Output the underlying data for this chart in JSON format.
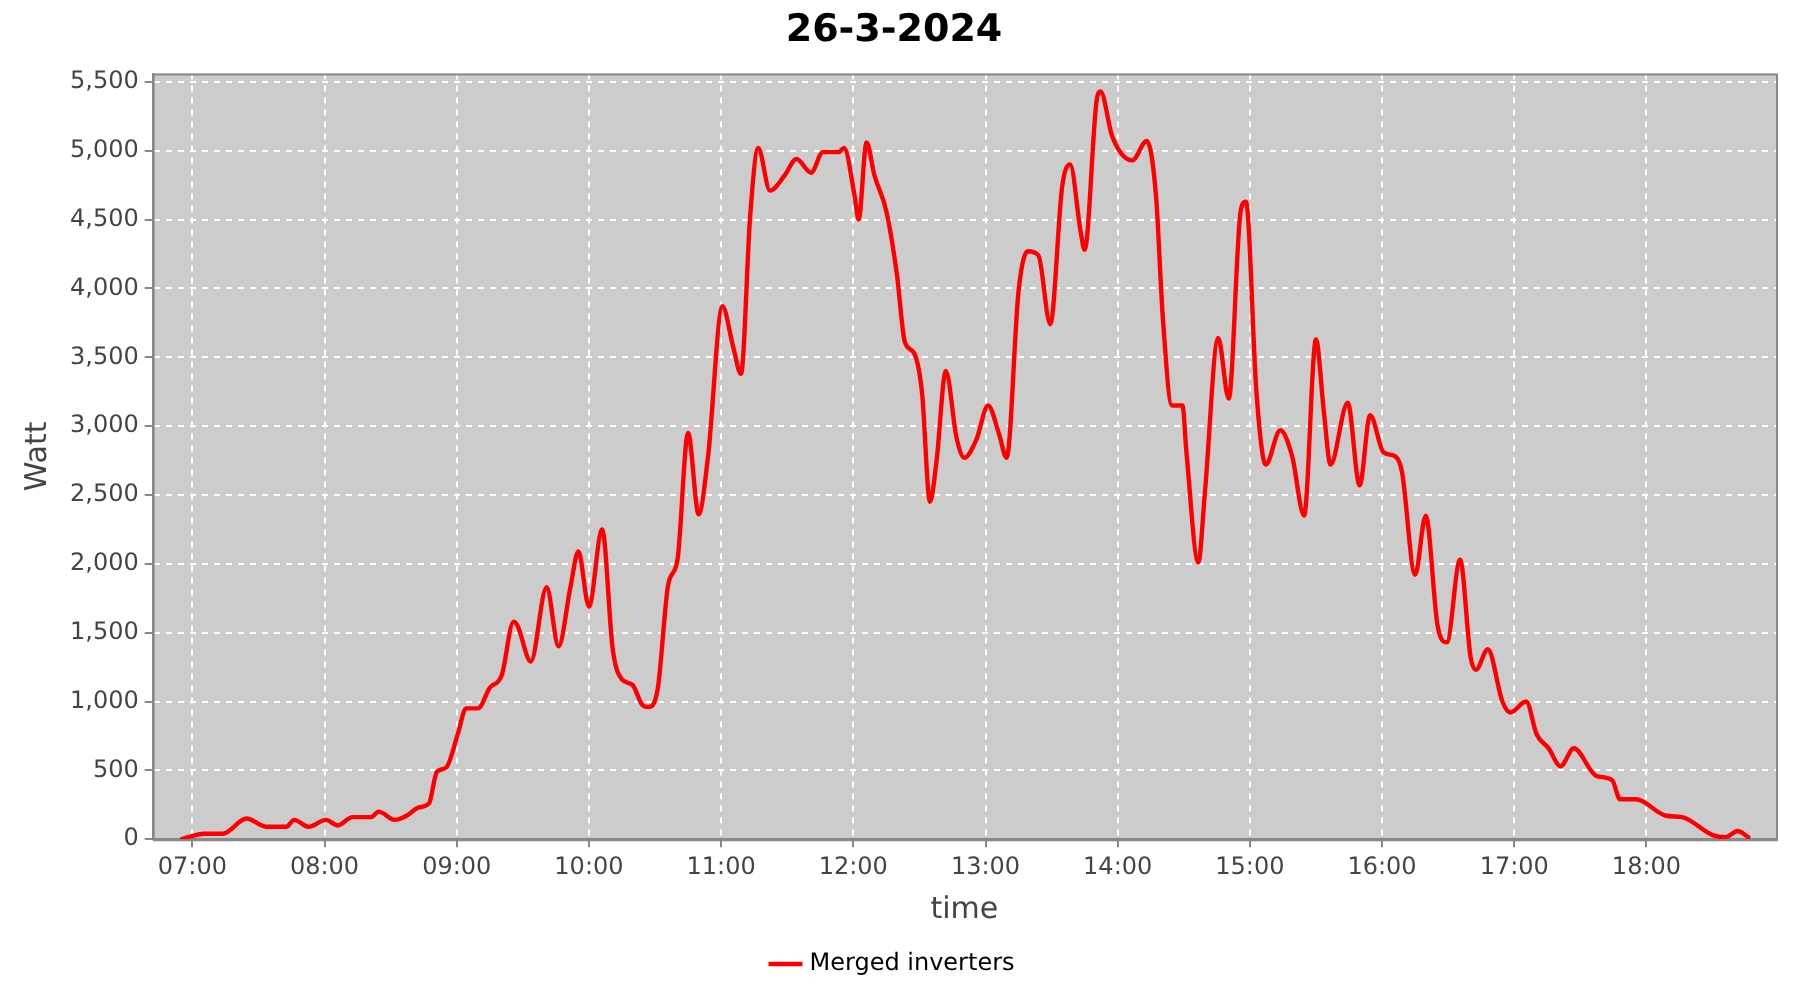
{
  "chart_data": {
    "type": "line",
    "title": "26-3-2024",
    "xlabel": "time",
    "ylabel": "Watt",
    "xlim": [
      6.7,
      18.98
    ],
    "xticks": [
      {
        "value": 7,
        "label": "07:00"
      },
      {
        "value": 8,
        "label": "08:00"
      },
      {
        "value": 9,
        "label": "09:00"
      },
      {
        "value": 10,
        "label": "10:00"
      },
      {
        "value": 11,
        "label": "11:00"
      },
      {
        "value": 12,
        "label": "12:00"
      },
      {
        "value": 13,
        "label": "13:00"
      },
      {
        "value": 14,
        "label": "14:00"
      },
      {
        "value": 15,
        "label": "15:00"
      },
      {
        "value": 16,
        "label": "16:00"
      },
      {
        "value": 17,
        "label": "17:00"
      },
      {
        "value": 18,
        "label": "18:00"
      }
    ],
    "ylim": [
      0,
      5560
    ],
    "yticks": [
      0,
      500,
      {
        "value": 1000,
        "label": "1,000"
      },
      {
        "value": 1500,
        "label": "1,500"
      },
      {
        "value": 2000,
        "label": "2,000"
      },
      {
        "value": 2500,
        "label": "2,500"
      },
      {
        "value": 3000,
        "label": "3,000"
      },
      {
        "value": 3500,
        "label": "3,500"
      },
      {
        "value": 4000,
        "label": "4,000"
      },
      {
        "value": 4500,
        "label": "4,500"
      },
      {
        "value": 5000,
        "label": "5,000"
      },
      {
        "value": 5500,
        "label": "5,500"
      }
    ],
    "grid": true,
    "legend": "bottom",
    "marker": "none",
    "line_style": "solid",
    "series": [
      {
        "name": "Merged inverters",
        "color": "#ff0000",
        "x": [
          6.92,
          7.09,
          7.23,
          7.41,
          7.56,
          7.71,
          7.77,
          7.88,
          8.01,
          8.1,
          8.21,
          8.35,
          8.41,
          8.53,
          8.62,
          8.71,
          8.79,
          8.85,
          8.92,
          9.01,
          9.07,
          9.16,
          9.25,
          9.34,
          9.43,
          9.46,
          9.56,
          9.68,
          9.77,
          9.86,
          9.92,
          10.0,
          10.1,
          10.18,
          10.25,
          10.33,
          10.4,
          10.45,
          10.52,
          10.6,
          10.67,
          10.75,
          10.83,
          10.9,
          11.01,
          11.09,
          11.15,
          11.22,
          11.28,
          11.37,
          11.48,
          11.57,
          11.68,
          11.77,
          11.89,
          11.93,
          12.01,
          12.04,
          12.1,
          12.16,
          12.25,
          12.33,
          12.39,
          12.46,
          12.52,
          12.58,
          12.63,
          12.7,
          12.78,
          12.84,
          12.93,
          13.02,
          13.1,
          13.16,
          13.25,
          13.32,
          13.4,
          13.49,
          13.58,
          13.64,
          13.72,
          13.75,
          13.84,
          13.87,
          13.96,
          14.11,
          14.22,
          14.29,
          14.34,
          14.41,
          14.49,
          14.52,
          14.61,
          14.66,
          14.76,
          14.84,
          14.93,
          14.97,
          15.05,
          15.12,
          15.23,
          15.32,
          15.41,
          15.5,
          15.56,
          15.61,
          15.74,
          15.83,
          15.91,
          16.01,
          16.1,
          16.15,
          16.25,
          16.33,
          16.42,
          16.49,
          16.59,
          16.67,
          16.71,
          16.8,
          16.91,
          16.97,
          17.09,
          17.17,
          17.26,
          17.35,
          17.45,
          17.62,
          17.74,
          17.8,
          17.92,
          18.15,
          18.27,
          18.5,
          18.6,
          18.69,
          18.77
        ],
        "values": [
          0,
          40,
          40,
          150,
          90,
          90,
          140,
          90,
          140,
          100,
          160,
          160,
          200,
          140,
          170,
          230,
          260,
          490,
          520,
          770,
          950,
          950,
          1100,
          1190,
          1580,
          1550,
          1290,
          1830,
          1400,
          1830,
          2090,
          1690,
          2250,
          1380,
          1160,
          1120,
          980,
          960,
          1090,
          1850,
          2030,
          2950,
          2360,
          2770,
          3870,
          3580,
          3380,
          4530,
          5020,
          4710,
          4820,
          4940,
          4840,
          4990,
          4990,
          5020,
          4670,
          4500,
          5060,
          4820,
          4560,
          4100,
          3610,
          3530,
          3240,
          2450,
          2750,
          3400,
          2920,
          2770,
          2900,
          3150,
          2950,
          2770,
          3980,
          4270,
          4240,
          3740,
          4740,
          4900,
          4410,
          4280,
          5360,
          5430,
          5100,
          4930,
          5070,
          4670,
          3810,
          3150,
          3150,
          2810,
          2010,
          2520,
          3640,
          3200,
          4560,
          4630,
          3240,
          2720,
          2970,
          2780,
          2350,
          3630,
          3100,
          2720,
          3170,
          2570,
          3080,
          2810,
          2780,
          2670,
          1920,
          2350,
          1550,
          1430,
          2030,
          1320,
          1230,
          1380,
          1000,
          920,
          1000,
          760,
          660,
          530,
          660,
          460,
          430,
          290,
          290,
          170,
          160,
          30,
          15,
          60,
          15
        ]
      }
    ]
  }
}
